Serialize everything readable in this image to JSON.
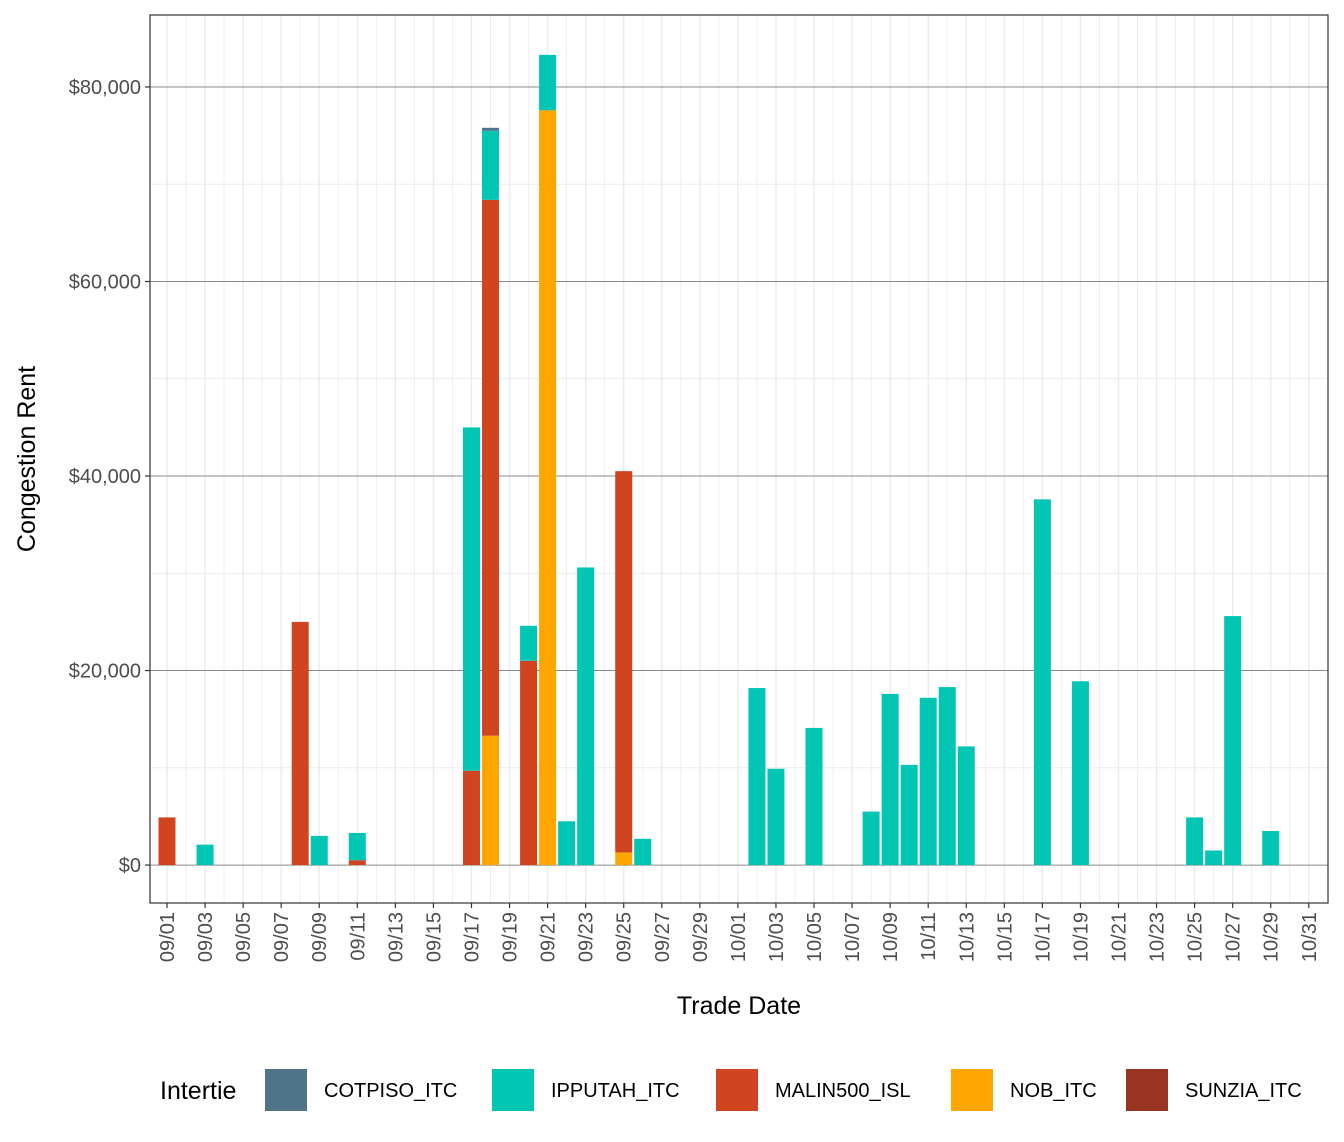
{
  "chart_data": {
    "type": "bar",
    "stacked": true,
    "xlabel": "Trade Date",
    "ylabel": "Congestion Rent",
    "ylim": [
      -3900,
      87400
    ],
    "yticks": [
      0,
      20000,
      40000,
      60000,
      80000
    ],
    "ytick_labels": [
      "$0",
      "$20,000",
      "$40,000",
      "$60,000",
      "$80,000"
    ],
    "xtick_labels": [
      "09/01",
      "09/03",
      "09/05",
      "09/07",
      "09/09",
      "09/11",
      "09/13",
      "09/15",
      "09/17",
      "09/19",
      "09/21",
      "09/23",
      "09/25",
      "09/27",
      "09/29",
      "10/01",
      "10/03",
      "10/05",
      "10/07",
      "10/09",
      "10/11",
      "10/13",
      "10/15",
      "10/17",
      "10/19",
      "10/21",
      "10/23",
      "10/25",
      "10/27",
      "10/29",
      "10/31"
    ],
    "grid": true,
    "legend": {
      "title": "Intertie",
      "position": "bottom"
    },
    "x": [
      "09/01",
      "09/03",
      "09/08",
      "09/09",
      "09/11",
      "09/17",
      "09/18",
      "09/20",
      "09/21",
      "09/22",
      "09/23",
      "09/25",
      "09/26",
      "10/02",
      "10/03",
      "10/05",
      "10/08",
      "10/09",
      "10/10",
      "10/11",
      "10/12",
      "10/13",
      "10/17",
      "10/19",
      "10/25",
      "10/26",
      "10/27",
      "10/29"
    ],
    "series": [
      {
        "name": "COTPISO_ITC",
        "color": "#4F7389",
        "values": [
          0,
          0,
          0,
          0,
          0,
          0,
          300,
          0,
          0,
          0,
          0,
          0,
          0,
          0,
          0,
          0,
          0,
          0,
          0,
          0,
          0,
          0,
          0,
          0,
          0,
          0,
          0,
          0
        ]
      },
      {
        "name": "IPPUTAH_ITC",
        "color": "#00C6B3",
        "values": [
          0,
          2100,
          0,
          3000,
          2800,
          35300,
          7100,
          3600,
          5700,
          4500,
          30600,
          0,
          2700,
          18200,
          9900,
          14100,
          5500,
          17600,
          10300,
          17200,
          18300,
          12200,
          37600,
          18900,
          4900,
          1500,
          25600,
          3500
        ]
      },
      {
        "name": "MALIN500_ISL",
        "color": "#D04520",
        "values": [
          4900,
          0,
          25000,
          0,
          500,
          9700,
          55100,
          21000,
          0,
          0,
          0,
          39200,
          0,
          0,
          0,
          0,
          0,
          0,
          0,
          0,
          0,
          0,
          0,
          0,
          0,
          0,
          0,
          0
        ]
      },
      {
        "name": "NOB_ITC",
        "color": "#FFA500",
        "values": [
          0,
          0,
          0,
          0,
          0,
          0,
          13300,
          0,
          77600,
          0,
          0,
          1300,
          0,
          0,
          0,
          0,
          0,
          0,
          0,
          0,
          0,
          0,
          0,
          0,
          0,
          0,
          0,
          0
        ]
      },
      {
        "name": "SUNZIA_ITC",
        "color": "#993322",
        "values": [
          0,
          0,
          0,
          0,
          0,
          0,
          0,
          0,
          0,
          0,
          0,
          0,
          0,
          0,
          0,
          0,
          0,
          0,
          0,
          0,
          0,
          0,
          0,
          0,
          0,
          0,
          0,
          0
        ]
      }
    ]
  }
}
